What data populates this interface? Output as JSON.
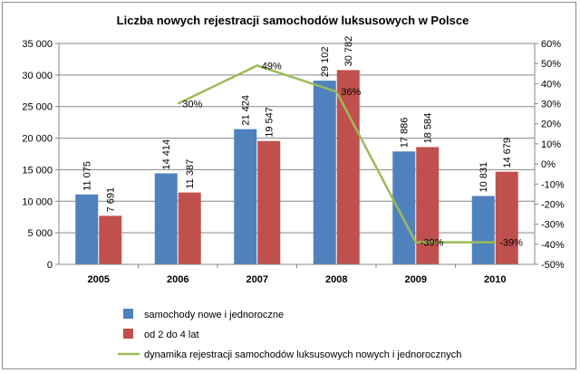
{
  "chart_data": {
    "type": "bar",
    "title": "Liczba nowych rejestracji samochodów luksusowych w Polsce",
    "categories": [
      "2005",
      "2006",
      "2007",
      "2008",
      "2009",
      "2010"
    ],
    "series": [
      {
        "name": "samochody nowe i jednoroczne",
        "type": "bar",
        "axis": "left",
        "color": "#4f81bd",
        "values": [
          11075,
          14414,
          21424,
          29102,
          17886,
          10831
        ],
        "labels": [
          "11 075",
          "14 414",
          "21 424",
          "29 102",
          "17 886",
          "10 831"
        ]
      },
      {
        "name": "od 2 do 4 lat",
        "type": "bar",
        "axis": "left",
        "color": "#c0504d",
        "values": [
          7691,
          11387,
          19547,
          30782,
          18584,
          14679
        ],
        "labels": [
          "7 691",
          "11 387",
          "19 547",
          "30 782",
          "18 584",
          "14 679"
        ]
      },
      {
        "name": "dynamika rejestracji samochodów luksusowych nowych i jednorocznych",
        "type": "line",
        "axis": "right",
        "color": "#9bbb59",
        "values": [
          null,
          30,
          49,
          36,
          -39,
          -39
        ],
        "labels": [
          "",
          "30%",
          "49%",
          "36%",
          "-39%",
          "-39%"
        ]
      }
    ],
    "y_left": {
      "min": 0,
      "max": 35000,
      "step": 5000,
      "ticks": [
        "0",
        "5 000",
        "10 000",
        "15 000",
        "20 000",
        "25 000",
        "30 000",
        "35 000"
      ]
    },
    "y_right": {
      "min": -50,
      "max": 60,
      "step": 10,
      "ticks": [
        "-50%",
        "-40%",
        "-30%",
        "-20%",
        "-10%",
        "0%",
        "10%",
        "20%",
        "30%",
        "40%",
        "50%",
        "60%"
      ]
    },
    "grid": true,
    "legend_position": "bottom"
  }
}
